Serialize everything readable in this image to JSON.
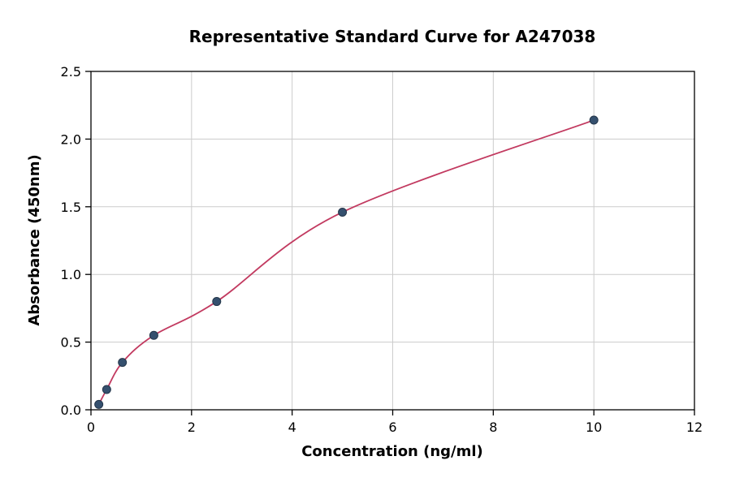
{
  "title": "Representative Standard Curve for A247038",
  "chart_data": {
    "type": "scatter",
    "title": "Representative Standard Curve for A247038",
    "xlabel": "Concentration (ng/ml)",
    "ylabel": "Absorbance (450nm)",
    "xlim": [
      0,
      12
    ],
    "ylim": [
      0,
      2.5
    ],
    "xticks": [
      0,
      2,
      4,
      6,
      8,
      10,
      12
    ],
    "yticks": [
      0,
      0.5,
      1.0,
      1.5,
      2.0,
      2.5
    ],
    "xtick_labels": [
      "0",
      "2",
      "4",
      "6",
      "8",
      "10",
      "12"
    ],
    "ytick_labels": [
      "0.0",
      "0.5",
      "1.0",
      "1.5",
      "2.0",
      "2.5"
    ],
    "grid": true,
    "points": {
      "x": [
        0.156,
        0.3125,
        0.625,
        1.25,
        2.5,
        5,
        10
      ],
      "y": [
        0.04,
        0.15,
        0.35,
        0.55,
        0.8,
        1.46,
        2.14
      ]
    },
    "colors": {
      "curve": "#c23a60",
      "point": "#35506e",
      "point_edge": "#24364a",
      "grid": "#cccccc",
      "axis": "#000000"
    }
  }
}
